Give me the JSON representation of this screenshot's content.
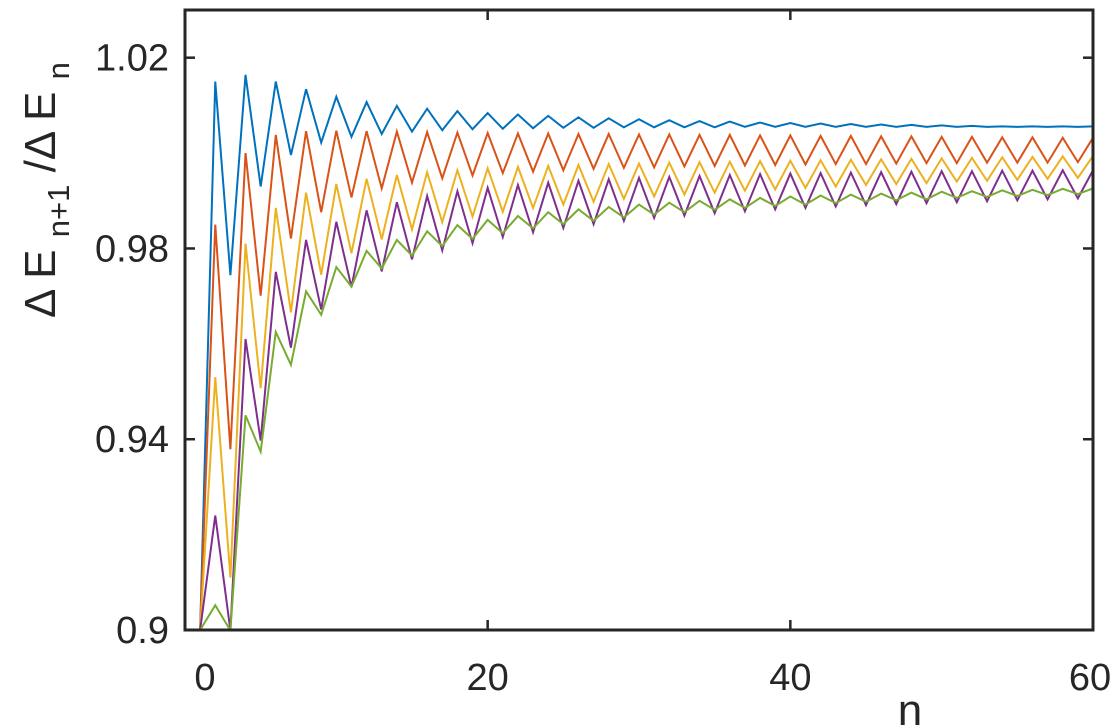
{
  "chart_data": {
    "type": "line",
    "title": "",
    "xlabel": "n",
    "ylabel": {
      "prefix": "Δ E",
      "numerator_subscript": "n+1",
      "separator": "/Δ E",
      "denominator_subscript": "n"
    },
    "xlim": [
      0,
      60
    ],
    "ylim": [
      0.9,
      1.03
    ],
    "xticks": [
      0,
      20,
      40,
      60
    ],
    "xtick_labels": [
      "0",
      "20",
      "40",
      "60"
    ],
    "yticks": [
      0.9,
      0.94,
      0.98,
      1.02
    ],
    "ytick_labels": [
      "0.9",
      "0.94",
      "0.98",
      "1.02"
    ],
    "grid": false,
    "legend": false,
    "x": [
      1,
      2,
      3,
      4,
      5,
      6,
      7,
      8,
      9,
      10,
      11,
      12,
      13,
      14,
      15,
      16,
      17,
      18,
      19,
      20,
      21,
      22,
      23,
      24,
      25,
      26,
      27,
      28,
      29,
      30,
      31,
      32,
      33,
      34,
      35,
      36,
      37,
      38,
      39,
      40,
      41,
      42,
      43,
      44,
      45,
      46,
      47,
      48,
      49,
      50,
      51,
      52,
      53,
      54,
      55,
      56,
      57,
      58,
      59,
      60
    ],
    "series": [
      {
        "color": "#0072BD",
        "values": [
          0.9,
          1.015,
          0.9744,
          1.0164,
          0.993,
          1.015,
          0.9996,
          1.0134,
          1.0022,
          1.0118,
          1.0034,
          1.0107,
          1.004,
          1.0099,
          1.0045,
          1.0093,
          1.0048,
          1.0088,
          1.005,
          1.0084,
          1.0051,
          1.0081,
          1.0052,
          1.0078,
          1.0053,
          1.0075,
          1.0053,
          1.0073,
          1.0054,
          1.0071,
          1.0054,
          1.0069,
          1.0054,
          1.0067,
          1.0054,
          1.0066,
          1.0055,
          1.0064,
          1.0055,
          1.0063,
          1.0055,
          1.0062,
          1.0055,
          1.0061,
          1.0055,
          1.006,
          1.0055,
          1.0059,
          1.0055,
          1.0058,
          1.0055,
          1.0057,
          1.0055,
          1.0056,
          1.0055,
          1.0056,
          1.0055,
          1.0056,
          1.0055,
          1.0056
        ]
      },
      {
        "color": "#D95319",
        "values": [
          0.9,
          0.985,
          0.9379,
          1.0,
          0.9701,
          1.0038,
          0.9821,
          1.0046,
          0.9876,
          1.0047,
          0.9907,
          1.0046,
          0.9926,
          1.0045,
          0.9938,
          1.0044,
          0.9947,
          1.0043,
          0.9953,
          1.0042,
          0.9958,
          1.0041,
          0.9961,
          1.0041,
          0.9964,
          1.004,
          0.9967,
          1.004,
          0.9969,
          1.0039,
          0.997,
          1.0039,
          0.9972,
          1.0038,
          0.9973,
          1.0038,
          0.9974,
          1.0037,
          0.9975,
          1.0037,
          0.9976,
          1.0036,
          0.9977,
          1.0036,
          0.9977,
          1.0035,
          0.9978,
          1.0035,
          0.9979,
          1.0034,
          0.9979,
          1.0034,
          0.998,
          1.0033,
          0.998,
          1.0033,
          0.998,
          1.0032,
          0.9981,
          1.0032
        ]
      },
      {
        "color": "#EDB120",
        "values": [
          0.9,
          0.953,
          0.911,
          0.981,
          0.9507,
          0.9885,
          0.9666,
          0.9917,
          0.9745,
          0.9935,
          0.979,
          0.9946,
          0.9819,
          0.9954,
          0.984,
          0.996,
          0.9855,
          0.9964,
          0.9867,
          0.9968,
          0.9877,
          0.9971,
          0.9885,
          0.9973,
          0.9892,
          0.9975,
          0.9898,
          0.9977,
          0.9904,
          0.9978,
          0.9909,
          0.998,
          0.9913,
          0.9981,
          0.9917,
          0.9982,
          0.9921,
          0.9983,
          0.9924,
          0.9984,
          0.9927,
          0.9985,
          0.993,
          0.9986,
          0.9933,
          0.9987,
          0.9935,
          0.9988,
          0.9937,
          0.9989,
          0.994,
          0.999,
          0.9942,
          0.9991,
          0.9944,
          0.9992,
          0.9946,
          0.9993,
          0.9948,
          0.9994
        ]
      },
      {
        "color": "#7E2F8E",
        "values": [
          0.9,
          0.924,
          0.8999,
          0.961,
          0.9397,
          0.9751,
          0.9592,
          0.9818,
          0.9672,
          0.9856,
          0.9719,
          0.988,
          0.9752,
          0.9897,
          0.9777,
          0.991,
          0.9796,
          0.992,
          0.9811,
          0.9927,
          0.9824,
          0.9933,
          0.9834,
          0.9938,
          0.9843,
          0.9942,
          0.9851,
          0.9945,
          0.9858,
          0.9948,
          0.9864,
          0.995,
          0.9869,
          0.9952,
          0.9874,
          0.9954,
          0.9878,
          0.9956,
          0.9882,
          0.9957,
          0.9885,
          0.9958,
          0.9888,
          0.9959,
          0.9891,
          0.996,
          0.9893,
          0.9961,
          0.9895,
          0.9962,
          0.9897,
          0.9962,
          0.9899,
          0.9963,
          0.9901,
          0.9963,
          0.9903,
          0.9964,
          0.9905,
          0.9964
        ]
      },
      {
        "color": "#77AC30",
        "values": [
          0.9,
          0.9052,
          0.8999,
          0.945,
          0.9374,
          0.9625,
          0.9556,
          0.971,
          0.9661,
          0.9761,
          0.972,
          0.9795,
          0.9758,
          0.9818,
          0.9785,
          0.9836,
          0.9805,
          0.9849,
          0.982,
          0.986,
          0.9832,
          0.9868,
          0.9842,
          0.9876,
          0.9851,
          0.9882,
          0.9858,
          0.9887,
          0.9865,
          0.9892,
          0.9871,
          0.9896,
          0.9876,
          0.99,
          0.9881,
          0.9903,
          0.9885,
          0.9906,
          0.9889,
          0.9909,
          0.9892,
          0.9911,
          0.9895,
          0.9913,
          0.9898,
          0.9915,
          0.9901,
          0.9917,
          0.9903,
          0.9919,
          0.9906,
          0.992,
          0.9908,
          0.9922,
          0.991,
          0.9923,
          0.9912,
          0.9925,
          0.9914,
          0.9926
        ]
      }
    ]
  }
}
